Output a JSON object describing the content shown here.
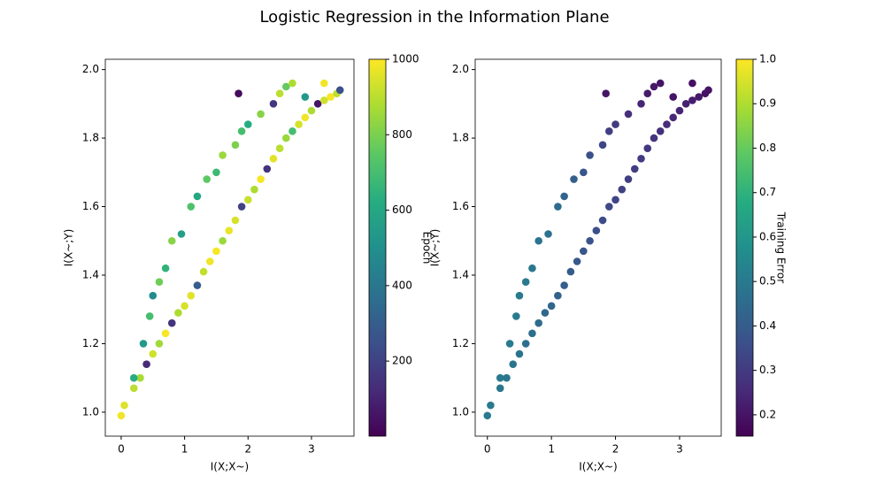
{
  "title": "Logistic Regression in the Information Plane",
  "chart_data": [
    {
      "type": "scatter",
      "x_label": "I(X;X~)",
      "y_label": "I(X~;Y)",
      "cmap": "viridis",
      "xlim": [
        -0.25,
        3.67
      ],
      "ylim": [
        0.93,
        2.03
      ],
      "xticks": [
        0,
        1,
        2,
        3
      ],
      "yticks": [
        {
          "value": 1,
          "label": "1.0"
        },
        1.2,
        1.4,
        1.6,
        1.8,
        {
          "value": 2,
          "label": "2.0"
        }
      ],
      "x": [
        0,
        0.05,
        0.2,
        0.3,
        0.4,
        0.5,
        0.6,
        0.7,
        0.8,
        0.9,
        1.0,
        1.1,
        1.2,
        1.3,
        1.4,
        1.5,
        1.6,
        1.7,
        1.8,
        1.9,
        2.0,
        2.1,
        2.2,
        2.3,
        2.4,
        2.5,
        2.6,
        2.7,
        2.8,
        2.9,
        3.0,
        3.1,
        3.2,
        3.3,
        3.4,
        3.45,
        0.2,
        0.35,
        0.45,
        0.5,
        0.6,
        0.7,
        0.8,
        0.95,
        1.1,
        1.2,
        1.35,
        1.5,
        1.6,
        1.8,
        1.9,
        2.0,
        2.2,
        2.4,
        2.5,
        2.6,
        2.7,
        1.85,
        2.9,
        3.2
      ],
      "values": [
        0.99,
        1.02,
        1.07,
        1.1,
        1.14,
        1.17,
        1.2,
        1.23,
        1.26,
        1.29,
        1.31,
        1.34,
        1.37,
        1.41,
        1.44,
        1.47,
        1.5,
        1.53,
        1.56,
        1.6,
        1.62,
        1.65,
        1.68,
        1.71,
        1.74,
        1.77,
        1.8,
        1.82,
        1.84,
        1.86,
        1.88,
        1.9,
        1.91,
        1.92,
        1.93,
        1.94,
        1.1,
        1.2,
        1.28,
        1.34,
        1.38,
        1.42,
        1.5,
        1.52,
        1.6,
        1.63,
        1.68,
        1.7,
        1.75,
        1.78,
        1.82,
        1.84,
        1.87,
        1.9,
        1.93,
        1.95,
        1.96,
        1.93,
        1.92,
        1.96
      ],
      "c": [
        980,
        950,
        900,
        870,
        120,
        930,
        860,
        990,
        150,
        880,
        940,
        960,
        300,
        910,
        980,
        990,
        850,
        970,
        940,
        200,
        920,
        880,
        990,
        150,
        960,
        900,
        850,
        700,
        940,
        980,
        880,
        60,
        930,
        990,
        900,
        250,
        620,
        540,
        700,
        480,
        780,
        650,
        820,
        560,
        720,
        600,
        750,
        680,
        850,
        800,
        700,
        620,
        820,
        160,
        900,
        760,
        880,
        30,
        540,
        980
      ],
      "colorbar": {
        "label": "Epoch",
        "clim": [
          1,
          1000
        ],
        "ticks": [
          200,
          400,
          600,
          800,
          1000
        ]
      }
    },
    {
      "type": "scatter",
      "x_label": "I(X;X~)",
      "y_label": "I(X~;Y)",
      "cmap": "viridis",
      "xlim": [
        -0.19,
        3.65
      ],
      "ylim": [
        0.93,
        2.03
      ],
      "xticks": [
        0,
        1,
        2,
        3
      ],
      "yticks": [
        {
          "value": 1,
          "label": "1.0"
        },
        1.2,
        1.4,
        1.6,
        1.8,
        {
          "value": 2,
          "label": "2.0"
        }
      ],
      "x": [
        0,
        0.05,
        0.2,
        0.3,
        0.4,
        0.5,
        0.6,
        0.7,
        0.8,
        0.9,
        1.0,
        1.1,
        1.2,
        1.3,
        1.4,
        1.5,
        1.6,
        1.7,
        1.8,
        1.9,
        2.0,
        2.1,
        2.2,
        2.3,
        2.4,
        2.5,
        2.6,
        2.7,
        2.8,
        2.9,
        3.0,
        3.1,
        3.2,
        3.3,
        3.4,
        3.45,
        0.2,
        0.35,
        0.45,
        0.5,
        0.6,
        0.7,
        0.8,
        0.95,
        1.1,
        1.2,
        1.35,
        1.5,
        1.6,
        1.8,
        1.9,
        2.0,
        2.2,
        2.4,
        2.5,
        2.6,
        2.7,
        1.85,
        2.9,
        3.2
      ],
      "values": [
        0.99,
        1.02,
        1.07,
        1.1,
        1.14,
        1.17,
        1.2,
        1.23,
        1.26,
        1.29,
        1.31,
        1.34,
        1.37,
        1.41,
        1.44,
        1.47,
        1.5,
        1.53,
        1.56,
        1.6,
        1.62,
        1.65,
        1.68,
        1.71,
        1.74,
        1.77,
        1.8,
        1.82,
        1.84,
        1.86,
        1.88,
        1.9,
        1.91,
        1.92,
        1.93,
        1.94,
        1.1,
        1.2,
        1.28,
        1.34,
        1.38,
        1.42,
        1.5,
        1.52,
        1.6,
        1.63,
        1.68,
        1.7,
        1.75,
        1.78,
        1.82,
        1.84,
        1.87,
        1.9,
        1.93,
        1.95,
        1.96,
        1.93,
        1.92,
        1.96
      ],
      "c": [
        0.5,
        0.5,
        0.49,
        0.49,
        0.48,
        0.48,
        0.47,
        0.46,
        0.45,
        0.44,
        0.43,
        0.42,
        0.41,
        0.4,
        0.39,
        0.38,
        0.37,
        0.36,
        0.35,
        0.34,
        0.33,
        0.32,
        0.31,
        0.31,
        0.3,
        0.29,
        0.28,
        0.27,
        0.26,
        0.25,
        0.24,
        0.23,
        0.22,
        0.21,
        0.2,
        0.2,
        0.5,
        0.5,
        0.5,
        0.5,
        0.5,
        0.49,
        0.48,
        0.47,
        0.45,
        0.43,
        0.41,
        0.38,
        0.36,
        0.33,
        0.31,
        0.3,
        0.27,
        0.24,
        0.22,
        0.21,
        0.2,
        0.2,
        0.2,
        0.19
      ],
      "colorbar": {
        "label": "Training Error",
        "clim": [
          0.152,
          1
        ],
        "ticks": [
          0.2,
          0.3,
          0.4,
          0.5,
          0.6,
          0.7,
          0.8,
          0.9,
          {
            "value": 1,
            "label": "1.0"
          }
        ]
      }
    }
  ]
}
